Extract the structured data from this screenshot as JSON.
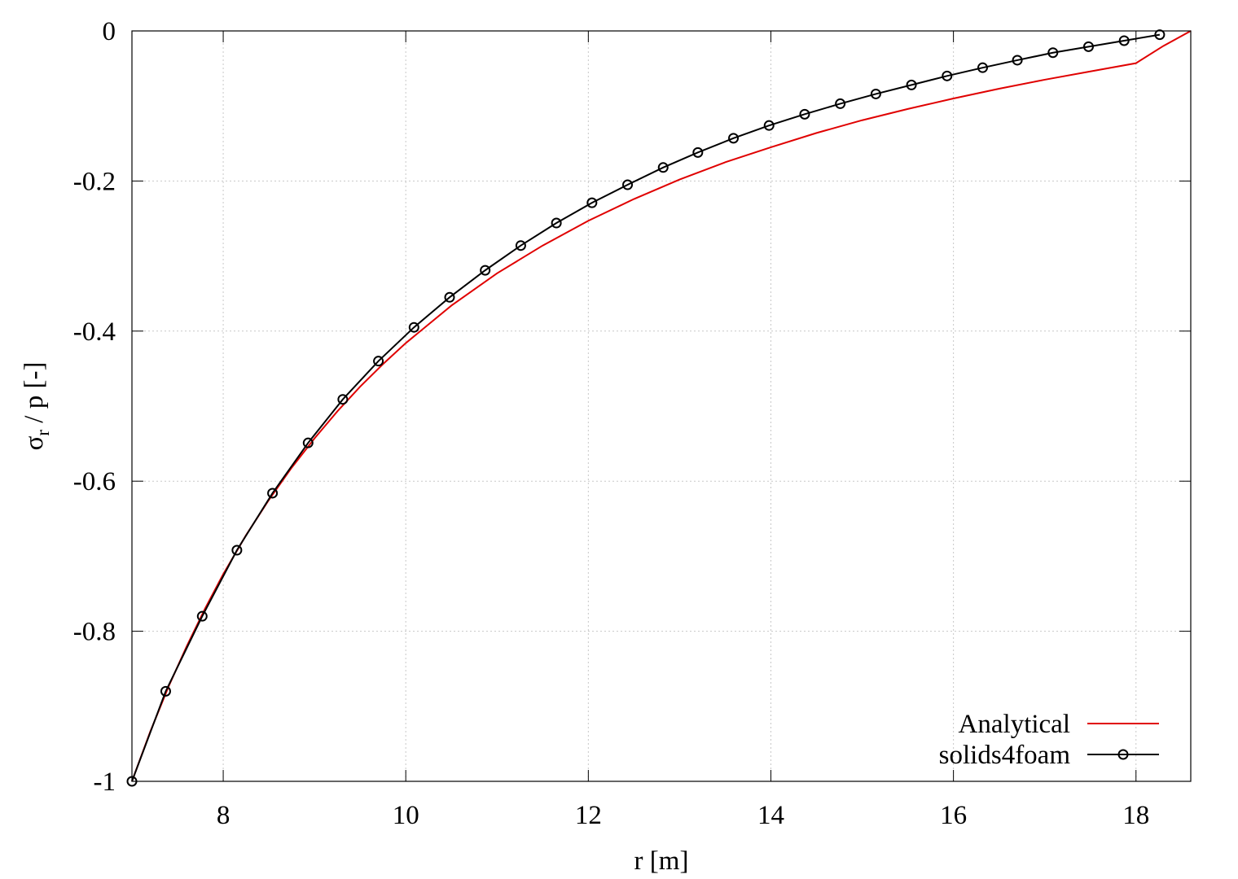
{
  "chart_data": {
    "type": "line",
    "title": "",
    "xlabel": "r [m]",
    "ylabel": {
      "symbol": "σ",
      "subscript": "r",
      "rest": " / p [-]"
    },
    "xlim": [
      7,
      18.6
    ],
    "ylim": [
      -1,
      0
    ],
    "xticks": [
      8,
      10,
      12,
      14,
      16,
      18
    ],
    "yticks": [
      0,
      -0.2,
      -0.4,
      -0.6,
      -0.8,
      -1
    ],
    "xtick_labels": [
      "8",
      "10",
      "12",
      "14",
      "16",
      "18"
    ],
    "ytick_labels": [
      "0",
      "-0.2",
      "-0.4",
      "-0.6",
      "-0.8",
      "-1"
    ],
    "grid": true,
    "legend_position": "bottom-right",
    "series": [
      {
        "name": "Analytical",
        "color": "#e00000",
        "style": "line",
        "x": [
          7.0,
          7.2,
          7.4,
          7.6,
          7.8,
          8.0,
          8.25,
          8.5,
          8.75,
          9.0,
          9.25,
          9.5,
          9.75,
          10.0,
          10.5,
          11.0,
          11.5,
          12.0,
          12.5,
          13.0,
          13.5,
          14.0,
          14.5,
          15.0,
          15.5,
          16.0,
          16.5,
          17.0,
          17.5,
          18.0,
          18.3,
          18.6
        ],
        "y": [
          -1.0,
          -0.934,
          -0.874,
          -0.82,
          -0.77,
          -0.724,
          -0.672,
          -0.625,
          -0.582,
          -0.543,
          -0.507,
          -0.474,
          -0.444,
          -0.416,
          -0.366,
          -0.323,
          -0.286,
          -0.253,
          -0.224,
          -0.198,
          -0.175,
          -0.155,
          -0.136,
          -0.119,
          -0.104,
          -0.09,
          -0.077,
          -0.065,
          -0.054,
          -0.043,
          -0.02,
          0.0
        ]
      },
      {
        "name": "solids4foam",
        "color": "#000000",
        "style": "line-circle",
        "x": [
          7.0,
          7.37,
          7.77,
          8.15,
          8.54,
          8.93,
          9.31,
          9.7,
          10.09,
          10.48,
          10.87,
          11.26,
          11.65,
          12.04,
          12.43,
          12.82,
          13.2,
          13.59,
          13.98,
          14.37,
          14.76,
          15.15,
          15.54,
          15.93,
          16.32,
          16.7,
          17.09,
          17.48,
          17.87,
          18.26
        ],
        "y": [
          -1.0,
          -0.88,
          -0.78,
          -0.692,
          -0.616,
          -0.549,
          -0.491,
          -0.44,
          -0.395,
          -0.355,
          -0.319,
          -0.286,
          -0.256,
          -0.229,
          -0.205,
          -0.182,
          -0.162,
          -0.143,
          -0.126,
          -0.111,
          -0.097,
          -0.084,
          -0.072,
          -0.06,
          -0.049,
          -0.039,
          -0.029,
          -0.021,
          -0.013,
          -0.005
        ]
      }
    ]
  }
}
